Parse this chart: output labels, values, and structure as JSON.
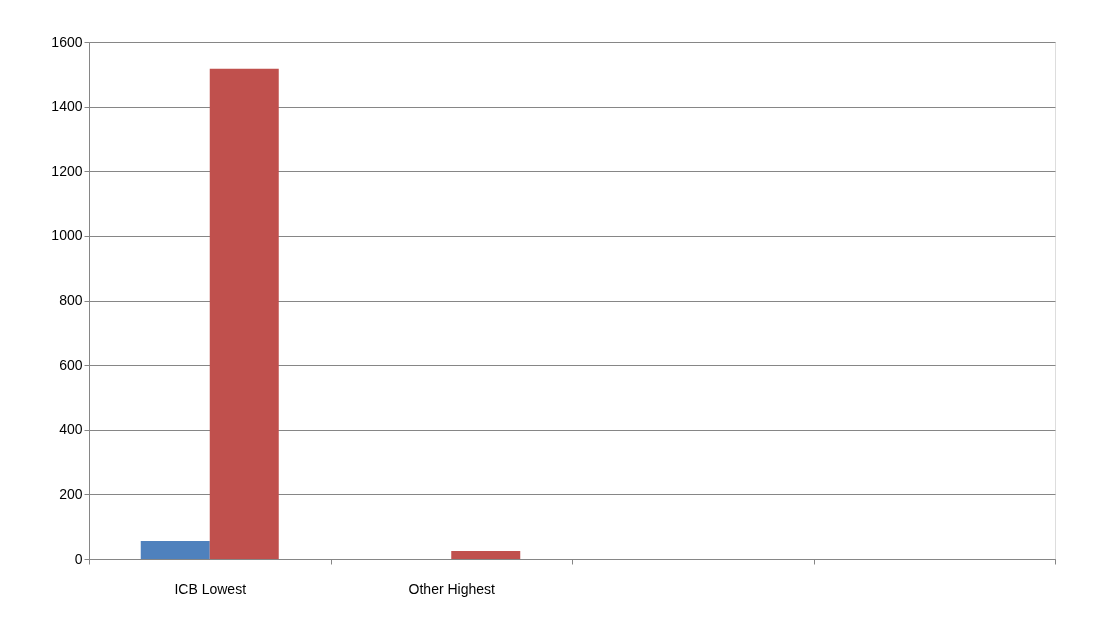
{
  "chart_data": {
    "type": "bar",
    "categories": [
      "ICB Lowest",
      "Other Highest",
      null,
      null
    ],
    "series": [
      {
        "color": "#4f81bd",
        "values": [
          56,
          null,
          null,
          null
        ]
      },
      {
        "color": "#c0504d",
        "values": [
          1517,
          25,
          null,
          null
        ]
      }
    ],
    "ylim": [
      0,
      1600
    ],
    "yticks": [
      0,
      200,
      400,
      600,
      800,
      1000,
      1200,
      1400,
      1600
    ],
    "grid": "y"
  }
}
